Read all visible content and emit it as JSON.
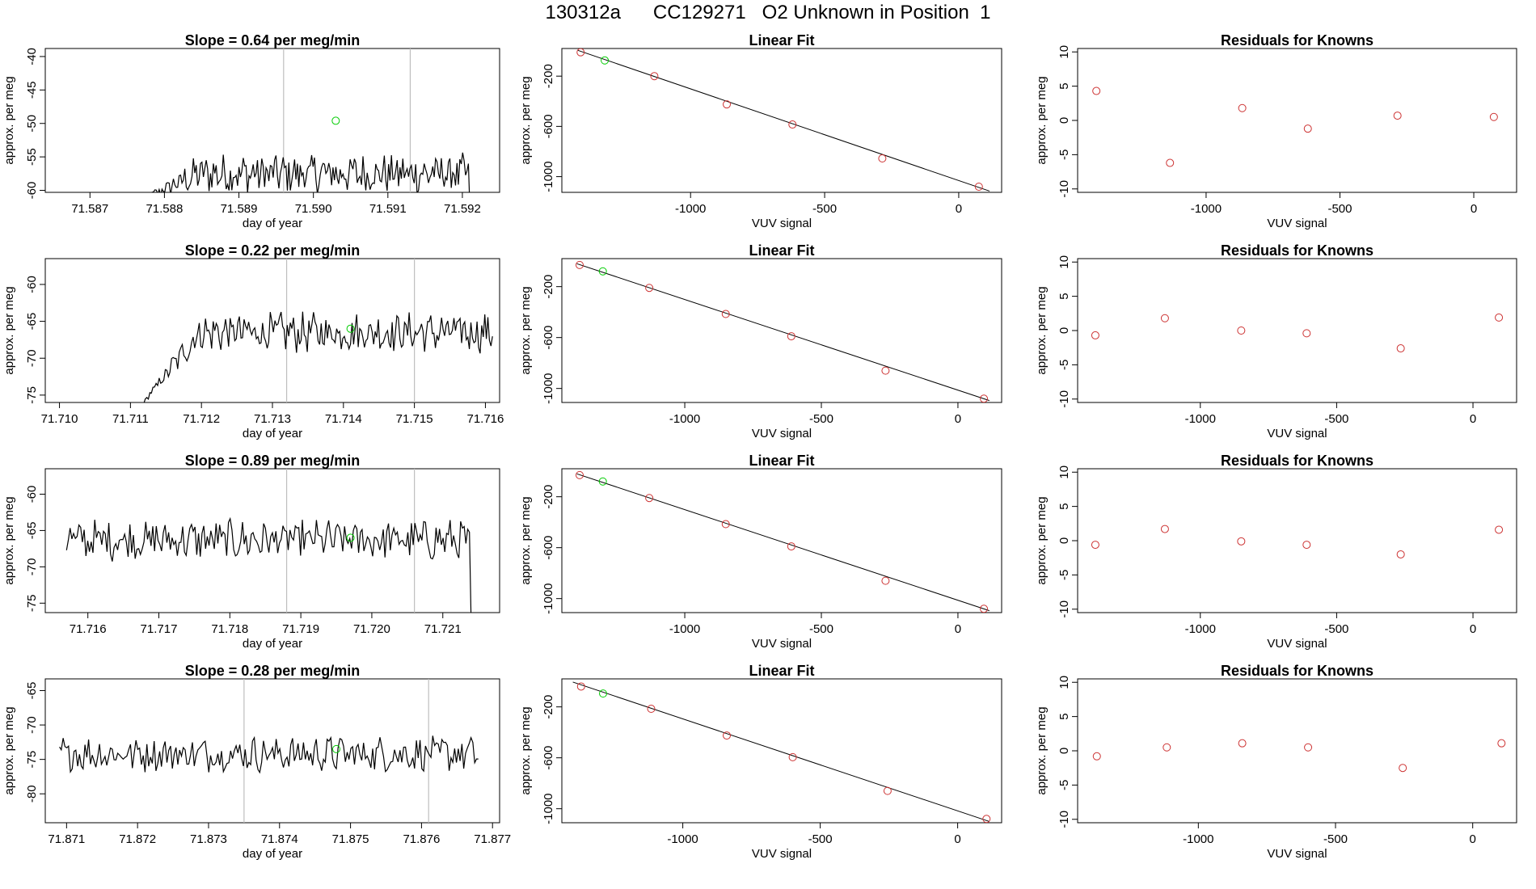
{
  "header": {
    "title": "130312a      CC129271   O2 Unknown in Position  1"
  },
  "colors": {
    "known": "#cd3333",
    "unknown": "#00cc00",
    "line": "#000000",
    "vline": "#bebebe"
  },
  "chart_data": [
    {
      "type": "line",
      "panel": "Slope 1",
      "title": "Slope =  0.64  per meg/min",
      "xlabel": "day of year",
      "ylabel": "approx. per meg",
      "xlim": [
        71.5864,
        71.5925
      ],
      "ylim": [
        -60.3,
        -38.8
      ],
      "xticks": [
        71.587,
        71.588,
        71.589,
        71.59,
        71.591,
        71.592
      ],
      "xtick_labels": [
        "71.587",
        "71.588",
        "71.589",
        "71.590",
        "71.591",
        "71.592"
      ],
      "yticks": [
        -60,
        -55,
        -50,
        -45,
        -40
      ],
      "ytick_labels": [
        "-60",
        "-55",
        "-50",
        "-45",
        "-40"
      ],
      "series_start": 71.5877,
      "series_end": 71.5921,
      "baseline": -57.5,
      "amplitude": 2.6,
      "series_values_note": "noisy trace, plateau level",
      "vlines": [
        71.5896,
        71.5913
      ],
      "unknown_point": [
        71.5903,
        -49.6
      ]
    },
    {
      "type": "line",
      "panel": "Slope 2",
      "title": "Slope =  0.22  per meg/min",
      "xlabel": "day of year",
      "ylabel": "approx. per meg",
      "xlim": [
        71.7098,
        71.7162
      ],
      "ylim": [
        -76.0,
        -56.5
      ],
      "xticks": [
        71.71,
        71.711,
        71.712,
        71.713,
        71.714,
        71.715,
        71.716
      ],
      "xtick_labels": [
        "71.710",
        "71.711",
        "71.712",
        "71.713",
        "71.714",
        "71.715",
        "71.716"
      ],
      "yticks": [
        -75,
        -70,
        -65,
        -60
      ],
      "ytick_labels": [
        "-75",
        "-70",
        "-65",
        "-60"
      ],
      "series_start": 71.7111,
      "series_end": 71.7161,
      "baseline": -66.5,
      "amplitude": 2.3,
      "vlines": [
        71.7132,
        71.715
      ],
      "unknown_point": [
        71.7141,
        -66.0
      ]
    },
    {
      "type": "line",
      "panel": "Slope 3",
      "title": "Slope =  0.89  per meg/min",
      "xlabel": "day of year",
      "ylabel": "approx. per meg",
      "xlim": [
        71.7154,
        71.7218
      ],
      "ylim": [
        -76.3,
        -56.5
      ],
      "xticks": [
        71.716,
        71.717,
        71.718,
        71.719,
        71.72,
        71.721
      ],
      "xtick_labels": [
        "71.716",
        "71.717",
        "71.718",
        "71.719",
        "71.720",
        "71.721"
      ],
      "yticks": [
        -75,
        -70,
        -65,
        -60
      ],
      "ytick_labels": [
        "-75",
        "-70",
        "-65",
        "-60"
      ],
      "series_start": 71.7157,
      "series_end": 71.7214,
      "baseline": -66.3,
      "amplitude": 2.4,
      "vlines": [
        71.7188,
        71.7206
      ],
      "unknown_point": [
        71.7197,
        -66.0
      ]
    },
    {
      "type": "line",
      "panel": "Slope 4",
      "title": "Slope =  0.28  per meg/min",
      "xlabel": "day of year",
      "ylabel": "approx. per meg",
      "xlim": [
        71.8707,
        71.8771
      ],
      "ylim": [
        -84.2,
        -63.3
      ],
      "xticks": [
        71.871,
        71.872,
        71.873,
        71.874,
        71.875,
        71.876,
        71.877
      ],
      "xtick_labels": [
        "71.871",
        "71.872",
        "71.873",
        "71.874",
        "71.875",
        "71.876",
        "71.877"
      ],
      "yticks": [
        -80,
        -75,
        -70,
        -65
      ],
      "ytick_labels": [
        "-80",
        "-75",
        "-70",
        "-65"
      ],
      "series_start": 71.8709,
      "series_end": 71.8768,
      "baseline": -74.2,
      "amplitude": 2.2,
      "vlines": [
        71.8735,
        71.8761
      ],
      "unknown_point": [
        71.8748,
        -73.5
      ]
    },
    {
      "type": "scatter",
      "panel": "Linear Fit 1",
      "title": "Linear Fit",
      "xlabel": "VUV signal",
      "ylabel": "approx. per meg",
      "xlim": [
        -1480,
        160
      ],
      "ylim": [
        -1125,
        20
      ],
      "xticks": [
        -1000,
        -500,
        0
      ],
      "xtick_labels": [
        "-1000",
        "-500",
        "0"
      ],
      "yticks": [
        -1000,
        -600,
        -200
      ],
      "ytick_labels": [
        "-1000",
        "-600",
        "-200"
      ],
      "known_x": [
        -1410,
        -1135,
        -865,
        -620,
        -285,
        75
      ],
      "known_y": [
        -10,
        -200,
        -425,
        -585,
        -855,
        -1080
      ],
      "unknown_point": [
        -1320,
        -75
      ],
      "fit_line": [
        [
          -1420,
          5
        ],
        [
          115,
          -1115
        ]
      ]
    },
    {
      "type": "scatter",
      "panel": "Linear Fit 2",
      "title": "Linear Fit",
      "xlabel": "VUV signal",
      "ylabel": "approx. per meg",
      "xlim": [
        -1450,
        160
      ],
      "ylim": [
        -1110,
        20
      ],
      "xticks": [
        -1000,
        -500,
        0
      ],
      "xtick_labels": [
        "-1000",
        "-500",
        "0"
      ],
      "yticks": [
        -1000,
        -600,
        -200
      ],
      "ytick_labels": [
        "-1000",
        "-600",
        "-200"
      ],
      "known_x": [
        -1385,
        -1130,
        -850,
        -610,
        -265,
        95
      ],
      "known_y": [
        -30,
        -210,
        -415,
        -590,
        -860,
        -1080
      ],
      "unknown_point": [
        -1300,
        -80
      ],
      "fit_line": [
        [
          -1395,
          -20
        ],
        [
          115,
          -1095
        ]
      ]
    },
    {
      "type": "scatter",
      "panel": "Linear Fit 3",
      "title": "Linear Fit",
      "xlabel": "VUV signal",
      "ylabel": "approx. per meg",
      "xlim": [
        -1450,
        160
      ],
      "ylim": [
        -1110,
        20
      ],
      "xticks": [
        -1000,
        -500,
        0
      ],
      "xtick_labels": [
        "-1000",
        "-500",
        "0"
      ],
      "yticks": [
        -1000,
        -600,
        -200
      ],
      "ytick_labels": [
        "-1000",
        "-600",
        "-200"
      ],
      "known_x": [
        -1385,
        -1130,
        -850,
        -610,
        -265,
        95
      ],
      "known_y": [
        -30,
        -210,
        -415,
        -590,
        -860,
        -1080
      ],
      "unknown_point": [
        -1300,
        -80
      ],
      "fit_line": [
        [
          -1395,
          -20
        ],
        [
          115,
          -1095
        ]
      ]
    },
    {
      "type": "scatter",
      "panel": "Linear Fit 4",
      "title": "Linear Fit",
      "xlabel": "VUV signal",
      "ylabel": "approx. per meg",
      "xlim": [
        -1440,
        160
      ],
      "ylim": [
        -1110,
        20
      ],
      "xticks": [
        -1000,
        -500,
        0
      ],
      "xtick_labels": [
        "-1000",
        "-500",
        "0"
      ],
      "yticks": [
        -1000,
        -600,
        -200
      ],
      "ytick_labels": [
        "-1000",
        "-600",
        "-200"
      ],
      "known_x": [
        -1370,
        -1115,
        -840,
        -600,
        -255,
        105
      ],
      "known_y": [
        -40,
        -215,
        -425,
        -595,
        -860,
        -1080
      ],
      "unknown_point": [
        -1290,
        -95
      ],
      "fit_line": [
        [
          -1400,
          -5
        ],
        [
          115,
          -1100
        ]
      ]
    },
    {
      "type": "scatter",
      "panel": "Residuals 1",
      "title": "Residuals for Knowns",
      "xlabel": "VUV signal",
      "ylabel": "approx. per meg",
      "xlim": [
        -1480,
        160
      ],
      "ylim": [
        -10.5,
        10.5
      ],
      "xticks": [
        -1000,
        -500,
        0
      ],
      "xtick_labels": [
        "-1000",
        "-500",
        "0"
      ],
      "yticks": [
        -10,
        -5,
        0,
        5,
        10
      ],
      "ytick_labels": [
        "-10",
        "-5",
        "0",
        "5",
        "10"
      ],
      "x": [
        -1410,
        -1135,
        -865,
        -620,
        -285,
        75
      ],
      "y": [
        4.3,
        -6.2,
        1.8,
        -1.2,
        0.7,
        0.5
      ]
    },
    {
      "type": "scatter",
      "panel": "Residuals 2",
      "title": "Residuals for Knowns",
      "xlabel": "VUV signal",
      "ylabel": "approx. per meg",
      "xlim": [
        -1450,
        160
      ],
      "ylim": [
        -10.5,
        10.5
      ],
      "xticks": [
        -1000,
        -500,
        0
      ],
      "xtick_labels": [
        "-1000",
        "-500",
        "0"
      ],
      "yticks": [
        -10,
        -5,
        0,
        5,
        10
      ],
      "ytick_labels": [
        "-10",
        "-5",
        "0",
        "5",
        "10"
      ],
      "x": [
        -1385,
        -1130,
        -850,
        -610,
        -265,
        95
      ],
      "y": [
        -0.7,
        1.8,
        0.0,
        -0.4,
        -2.6,
        1.9
      ]
    },
    {
      "type": "scatter",
      "panel": "Residuals 3",
      "title": "Residuals for Knowns",
      "xlabel": "VUV signal",
      "ylabel": "approx. per meg",
      "xlim": [
        -1450,
        160
      ],
      "ylim": [
        -10.5,
        10.5
      ],
      "xticks": [
        -1000,
        -500,
        0
      ],
      "xtick_labels": [
        "-1000",
        "-500",
        "0"
      ],
      "yticks": [
        -10,
        -5,
        0,
        5,
        10
      ],
      "ytick_labels": [
        "-10",
        "-5",
        "0",
        "5",
        "10"
      ],
      "x": [
        -1385,
        -1130,
        -850,
        -610,
        -265,
        95
      ],
      "y": [
        -0.6,
        1.7,
        -0.1,
        -0.6,
        -2.0,
        1.6
      ]
    },
    {
      "type": "scatter",
      "panel": "Residuals 4",
      "title": "Residuals for Knowns",
      "xlabel": "VUV signal",
      "ylabel": "approx. per meg",
      "xlim": [
        -1440,
        160
      ],
      "ylim": [
        -10.5,
        10.5
      ],
      "xticks": [
        -1000,
        -500,
        0
      ],
      "xtick_labels": [
        "-1000",
        "-500",
        "0"
      ],
      "yticks": [
        -10,
        -5,
        0,
        5,
        10
      ],
      "ytick_labels": [
        "-10",
        "-5",
        "0",
        "5",
        "10"
      ],
      "x": [
        -1370,
        -1115,
        -840,
        -600,
        -255,
        105
      ],
      "y": [
        -0.8,
        0.5,
        1.1,
        0.5,
        -2.5,
        1.1
      ]
    }
  ]
}
